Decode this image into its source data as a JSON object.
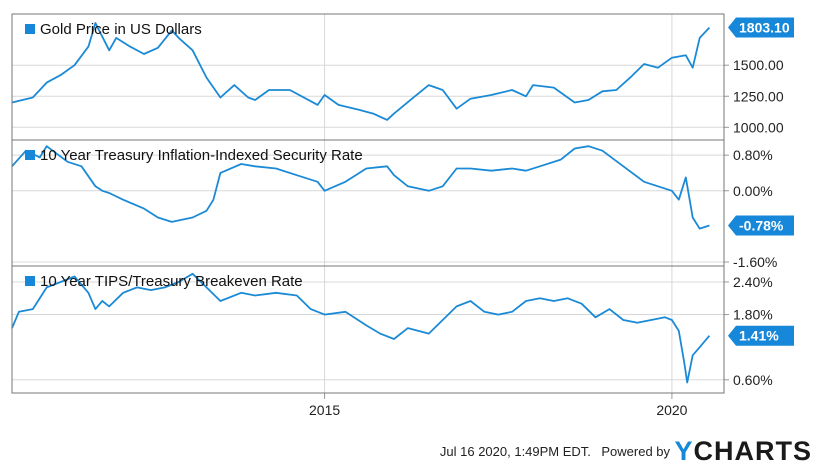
{
  "chart_data": [
    {
      "type": "line",
      "title": "Gold Price in US Dollars",
      "color": "#1b8ad6",
      "last_value": 1803.1,
      "last_label": "1803.10",
      "ylim": [
        930,
        1880
      ],
      "yticks": [
        1000,
        1250,
        1500
      ],
      "ytick_labels": [
        "1000.00",
        "1250.00",
        "1500.00"
      ],
      "x": [
        2010.5,
        2010.8,
        2011.0,
        2011.2,
        2011.4,
        2011.6,
        2011.7,
        2011.9,
        2012.0,
        2012.2,
        2012.4,
        2012.6,
        2012.8,
        2012.9,
        2013.1,
        2013.3,
        2013.5,
        2013.7,
        2013.9,
        2014.0,
        2014.2,
        2014.5,
        2014.8,
        2014.9,
        2015.0,
        2015.2,
        2015.5,
        2015.7,
        2015.9,
        2016.0,
        2016.3,
        2016.5,
        2016.7,
        2016.9,
        2017.1,
        2017.4,
        2017.7,
        2017.9,
        2018.0,
        2018.3,
        2018.6,
        2018.8,
        2019.0,
        2019.2,
        2019.4,
        2019.6,
        2019.8,
        2020.0,
        2020.2,
        2020.3,
        2020.4,
        2020.54
      ],
      "y": [
        1200,
        1240,
        1360,
        1420,
        1500,
        1650,
        1840,
        1620,
        1720,
        1650,
        1590,
        1640,
        1780,
        1720,
        1620,
        1400,
        1240,
        1340,
        1240,
        1220,
        1300,
        1300,
        1210,
        1180,
        1260,
        1180,
        1140,
        1110,
        1060,
        1110,
        1250,
        1340,
        1300,
        1150,
        1230,
        1260,
        1300,
        1250,
        1340,
        1320,
        1200,
        1220,
        1290,
        1300,
        1400,
        1510,
        1480,
        1560,
        1580,
        1480,
        1720,
        1803.1
      ]
    },
    {
      "type": "line",
      "title": "10 Year Treasury Inflation-Indexed Security Rate",
      "color": "#1b8ad6",
      "last_value": -0.78,
      "last_label": "-0.78%",
      "ylim": [
        -1.6,
        1.05
      ],
      "yticks": [
        0.8,
        0.0,
        -1.6
      ],
      "ytick_labels": [
        "0.80%",
        "0.00%",
        "-1.60%"
      ],
      "x": [
        2010.5,
        2010.7,
        2010.9,
        2011.0,
        2011.3,
        2011.5,
        2011.7,
        2011.8,
        2011.9,
        2012.1,
        2012.4,
        2012.6,
        2012.8,
        2013.1,
        2013.3,
        2013.4,
        2013.5,
        2013.8,
        2014.0,
        2014.3,
        2014.6,
        2014.9,
        2015.0,
        2015.3,
        2015.6,
        2015.9,
        2016.0,
        2016.2,
        2016.5,
        2016.7,
        2016.9,
        2017.1,
        2017.4,
        2017.7,
        2017.9,
        2018.1,
        2018.4,
        2018.6,
        2018.8,
        2019.0,
        2019.3,
        2019.6,
        2019.8,
        2020.0,
        2020.1,
        2020.2,
        2020.3,
        2020.4,
        2020.54
      ],
      "y": [
        0.55,
        0.9,
        0.75,
        1.0,
        0.65,
        0.55,
        0.1,
        0.0,
        -0.05,
        -0.2,
        -0.4,
        -0.6,
        -0.7,
        -0.6,
        -0.45,
        -0.2,
        0.4,
        0.6,
        0.55,
        0.5,
        0.35,
        0.2,
        0.0,
        0.2,
        0.5,
        0.55,
        0.35,
        0.1,
        0.0,
        0.1,
        0.5,
        0.5,
        0.45,
        0.5,
        0.45,
        0.55,
        0.7,
        0.95,
        1.0,
        0.9,
        0.55,
        0.2,
        0.1,
        0.0,
        -0.2,
        0.3,
        -0.6,
        -0.85,
        -0.78
      ]
    },
    {
      "type": "line",
      "title": "10 Year TIPS/Treasury Breakeven Rate",
      "color": "#1b8ad6",
      "last_value": 1.41,
      "last_label": "1.41%",
      "ylim": [
        0.43,
        2.62
      ],
      "yticks": [
        2.4,
        1.8,
        0.6
      ],
      "ytick_labels": [
        "2.40%",
        "1.80%",
        "0.60%"
      ],
      "x": [
        2010.5,
        2010.6,
        2010.8,
        2011.0,
        2011.2,
        2011.4,
        2011.6,
        2011.7,
        2011.8,
        2011.9,
        2012.1,
        2012.3,
        2012.5,
        2012.7,
        2012.9,
        2013.1,
        2013.3,
        2013.5,
        2013.8,
        2014.0,
        2014.3,
        2014.6,
        2014.8,
        2015.0,
        2015.3,
        2015.6,
        2015.8,
        2016.0,
        2016.2,
        2016.5,
        2016.7,
        2016.9,
        2017.1,
        2017.3,
        2017.5,
        2017.7,
        2017.9,
        2018.1,
        2018.3,
        2018.5,
        2018.7,
        2018.9,
        2019.1,
        2019.3,
        2019.5,
        2019.7,
        2019.9,
        2020.0,
        2020.1,
        2020.18,
        2020.22,
        2020.3,
        2020.4,
        2020.54
      ],
      "y": [
        1.55,
        1.85,
        1.9,
        2.3,
        2.4,
        2.5,
        2.2,
        1.9,
        2.05,
        1.95,
        2.2,
        2.3,
        2.25,
        2.3,
        2.4,
        2.55,
        2.3,
        2.05,
        2.2,
        2.15,
        2.2,
        2.15,
        1.9,
        1.8,
        1.85,
        1.6,
        1.45,
        1.35,
        1.55,
        1.45,
        1.7,
        1.95,
        2.05,
        1.85,
        1.8,
        1.85,
        2.05,
        2.1,
        2.05,
        2.1,
        2.0,
        1.75,
        1.9,
        1.7,
        1.65,
        1.7,
        1.75,
        1.7,
        1.5,
        0.9,
        0.55,
        1.05,
        1.2,
        1.41
      ]
    }
  ],
  "x_axis": {
    "xlim": [
      2010.5,
      2020.75
    ],
    "ticks": [
      2015,
      2020
    ],
    "tick_labels": [
      "2015",
      "2020"
    ]
  },
  "footer": {
    "timestamp": "Jul 16 2020, 1:49PM EDT.",
    "powered_by": "Powered by",
    "brand_first": "Y",
    "brand_rest": "CHARTS"
  },
  "colors": {
    "line": "#1b8ad6",
    "grid": "#d8d8d8",
    "panel_border": "#777777",
    "label_bg": "#1687d9",
    "legend_square": "#1687d9"
  }
}
